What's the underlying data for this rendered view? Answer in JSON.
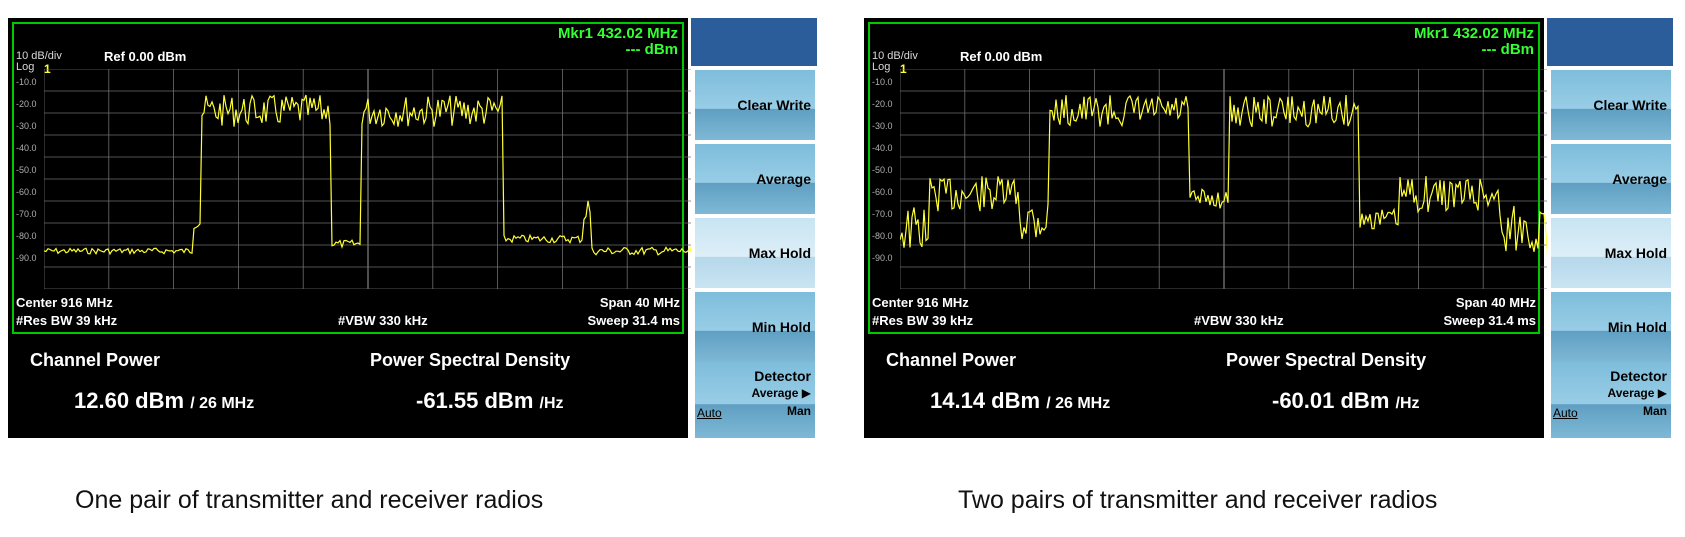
{
  "panels": [
    {
      "marker": {
        "line1": "Mkr1  432.02 MHz",
        "line2": "--- dBm"
      },
      "scale": {
        "div": "10 dB/div",
        "log": "Log",
        "ref": "Ref 0.00 dBm",
        "trace_num": "1"
      },
      "ticks": [
        "-10.0",
        "-20.0",
        "-30.0",
        "-40.0",
        "-50.0",
        "-60.0",
        "-70.0",
        "-80.0",
        "-90.0"
      ],
      "bottom": {
        "center": "Center  916 MHz",
        "span": "Span 40 MHz",
        "res_bw": "#Res BW  39 kHz",
        "vbw": "#VBW  330 kHz",
        "sweep": "Sweep  31.4 ms"
      },
      "measure": {
        "cp_title": "Channel Power",
        "psd_title": "Power Spectral Density",
        "cp_value": "12.60 dBm",
        "cp_unit": "/ 26 MHz",
        "psd_value": "-61.55 dBm",
        "psd_unit": "/Hz"
      },
      "softkeys": {
        "clear_write": "Clear Write",
        "average": "Average",
        "max_hold": "Max Hold",
        "min_hold": "Min Hold",
        "detector": "Detector",
        "detector_sub": "Average ▶",
        "auto": "Auto",
        "man": "Man"
      },
      "caption": "One pair of transmitter and receiver radios"
    },
    {
      "marker": {
        "line1": "Mkr1  432.02 MHz",
        "line2": "--- dBm"
      },
      "scale": {
        "div": "10 dB/div",
        "log": "Log",
        "ref": "Ref 0.00 dBm",
        "trace_num": "1"
      },
      "ticks": [
        "-10.0",
        "-20.0",
        "-30.0",
        "-40.0",
        "-50.0",
        "-60.0",
        "-70.0",
        "-80.0",
        "-90.0"
      ],
      "bottom": {
        "center": "Center  916 MHz",
        "span": "Span 40 MHz",
        "res_bw": "#Res BW  39 kHz",
        "vbw": "#VBW  330 kHz",
        "sweep": "Sweep  31.4 ms"
      },
      "measure": {
        "cp_title": "Channel Power",
        "psd_title": "Power Spectral Density",
        "cp_value": "14.14 dBm",
        "cp_unit": "/ 26 MHz",
        "psd_value": "-60.01 dBm",
        "psd_unit": "/Hz"
      },
      "softkeys": {
        "clear_write": "Clear Write",
        "average": "Average",
        "max_hold": "Max Hold",
        "min_hold": "Min Hold",
        "detector": "Detector",
        "detector_sub": "Average ▶",
        "auto": "Auto",
        "man": "Man"
      },
      "caption": "Two pairs of transmitter and receiver radios"
    }
  ],
  "colors": {
    "trace": "#ffff33",
    "grid": "#6e6e6e",
    "frame": "#00c800",
    "marker": "#33ff33",
    "softkey_header": "#2a5d9a"
  }
}
